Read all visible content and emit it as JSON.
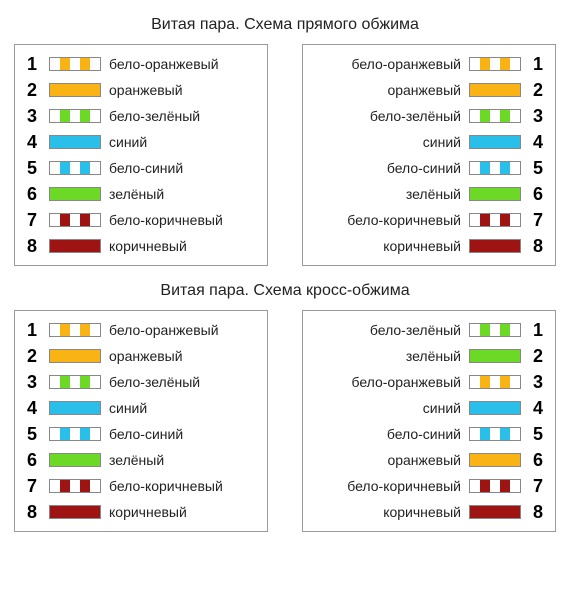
{
  "type": "infographic",
  "background_color": "#ffffff",
  "border_color": "#9a9a9a",
  "text_color": "#222222",
  "title_fontsize": 16,
  "label_fontsize": 14,
  "pin_fontsize": 18,
  "colors": {
    "white": "#ffffff",
    "orange": "#f9b315",
    "green": "#6cd926",
    "blue": "#29bfe8",
    "brown": "#9e1413"
  },
  "wires": {
    "white_orange": {
      "label": "бело-оранжевый",
      "pattern": [
        "white",
        "orange",
        "white",
        "orange",
        "white"
      ]
    },
    "orange": {
      "label": "оранжевый",
      "pattern": [
        "orange"
      ]
    },
    "white_green": {
      "label": "бело-зелёный",
      "pattern": [
        "white",
        "green",
        "white",
        "green",
        "white"
      ]
    },
    "blue": {
      "label": "синий",
      "pattern": [
        "blue"
      ]
    },
    "white_blue": {
      "label": "бело-синий",
      "pattern": [
        "white",
        "blue",
        "white",
        "blue",
        "white"
      ]
    },
    "green": {
      "label": "зелёный",
      "pattern": [
        "green"
      ]
    },
    "white_brown": {
      "label": "бело-коричневый",
      "pattern": [
        "white",
        "brown",
        "white",
        "brown",
        "white"
      ]
    },
    "brown": {
      "label": "коричневый",
      "pattern": [
        "brown"
      ]
    }
  },
  "sections": [
    {
      "title": "Витая пара. Схема прямого обжима",
      "left": [
        "white_orange",
        "orange",
        "white_green",
        "blue",
        "white_blue",
        "green",
        "white_brown",
        "brown"
      ],
      "right": [
        "white_orange",
        "orange",
        "white_green",
        "blue",
        "white_blue",
        "green",
        "white_brown",
        "brown"
      ]
    },
    {
      "title": "Витая пара. Схема кросс-обжима",
      "left": [
        "white_orange",
        "orange",
        "white_green",
        "blue",
        "white_blue",
        "green",
        "white_brown",
        "brown"
      ],
      "right": [
        "white_green",
        "green",
        "white_orange",
        "blue",
        "white_blue",
        "orange",
        "white_brown",
        "brown"
      ]
    }
  ]
}
